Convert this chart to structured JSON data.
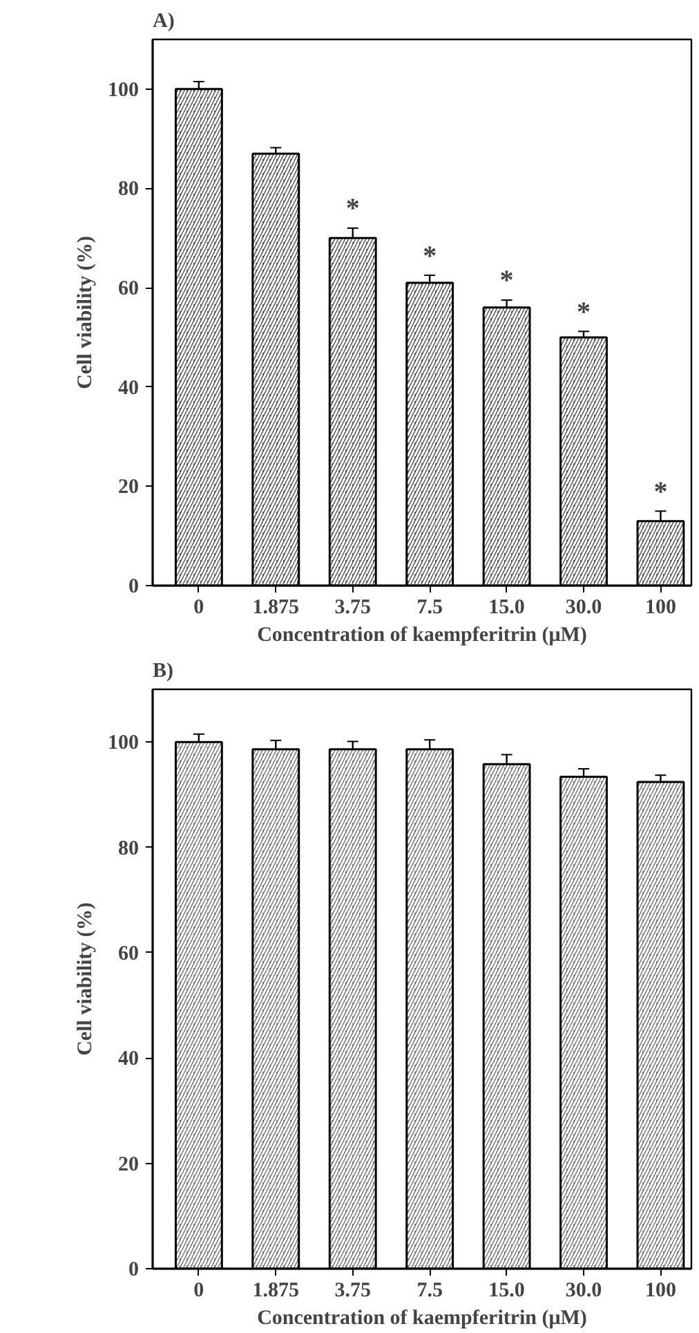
{
  "chart_data": [
    {
      "type": "bar",
      "title": "A)",
      "xlabel": "Concentration of kaempferitrin (μM)",
      "ylabel": "Cell viability (%)",
      "categories": [
        "0",
        "1.875",
        "3.75",
        "7.5",
        "15.0",
        "30.0",
        "100"
      ],
      "values": [
        100,
        87,
        70,
        61,
        56,
        50,
        13
      ],
      "errors": [
        1.5,
        1.2,
        2,
        1.5,
        1.5,
        1.2,
        2
      ],
      "color": "#555555",
      "ylim": [
        0,
        110
      ],
      "yticks": [
        0,
        20,
        40,
        60,
        80,
        100
      ],
      "grid": false,
      "annotations": [
        {
          "text": "*",
          "x": "3.75",
          "y": 70
        },
        {
          "text": "*",
          "x": "7.5",
          "y": 61
        },
        {
          "text": "*",
          "x": "15.0",
          "y": 56
        },
        {
          "text": "*",
          "x": "30.0",
          "y": 50
        },
        {
          "text": "*",
          "x": "100",
          "y": 13
        }
      ]
    },
    {
      "type": "bar",
      "title": "B)",
      "xlabel": "Concentration of kaempferitrin (μM)",
      "ylabel": "Cell viability (%)",
      "categories": [
        "0",
        "1.875",
        "3.75",
        "7.5",
        "15.0",
        "30.0",
        "100"
      ],
      "values": [
        100,
        98.6,
        98.6,
        98.6,
        95.8,
        93.4,
        92.4
      ],
      "errors": [
        1.5,
        1.7,
        1.5,
        1.8,
        1.8,
        1.5,
        1.3
      ],
      "color": "#777777",
      "ylim": [
        0,
        110
      ],
      "yticks": [
        0,
        20,
        40,
        60,
        80,
        100
      ],
      "grid": false
    }
  ]
}
